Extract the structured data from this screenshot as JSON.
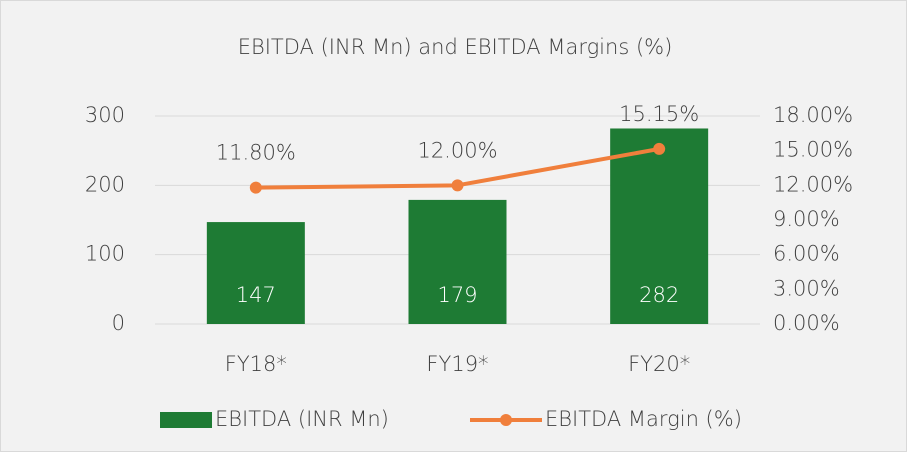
{
  "chart_data": {
    "type": "bar-line",
    "title": "EBITDA (INR Mn) and EBITDA Margins (%)",
    "categories": [
      "FY18*",
      "FY19*",
      "FY20*"
    ],
    "series": [
      {
        "name": "EBITDA (INR Mn)",
        "type": "bar",
        "color": "#1e7b34",
        "values": [
          147,
          179,
          282
        ]
      },
      {
        "name": "EBITDA Margin (%)",
        "type": "line",
        "axis": "y2",
        "color": "#f07f3c",
        "values": [
          11.8,
          12.0,
          15.15
        ],
        "value_labels": [
          "11.80%",
          "12.00%",
          "15.15%"
        ]
      }
    ],
    "ylim": [
      0,
      300
    ],
    "yticks": [
      0,
      100,
      200,
      300
    ],
    "y2lim": [
      0,
      18
    ],
    "y2ticks": [
      {
        "value": 0,
        "label": "0.00%"
      },
      {
        "value": 3,
        "label": "3.00%"
      },
      {
        "value": 6,
        "label": "6.00%"
      },
      {
        "value": 9,
        "label": "9.00%"
      },
      {
        "value": 12,
        "label": "12.00%"
      },
      {
        "value": 15,
        "label": "15.00%"
      },
      {
        "value": 18,
        "label": "18.00%"
      }
    ],
    "grid": true,
    "legend": "bottom"
  }
}
